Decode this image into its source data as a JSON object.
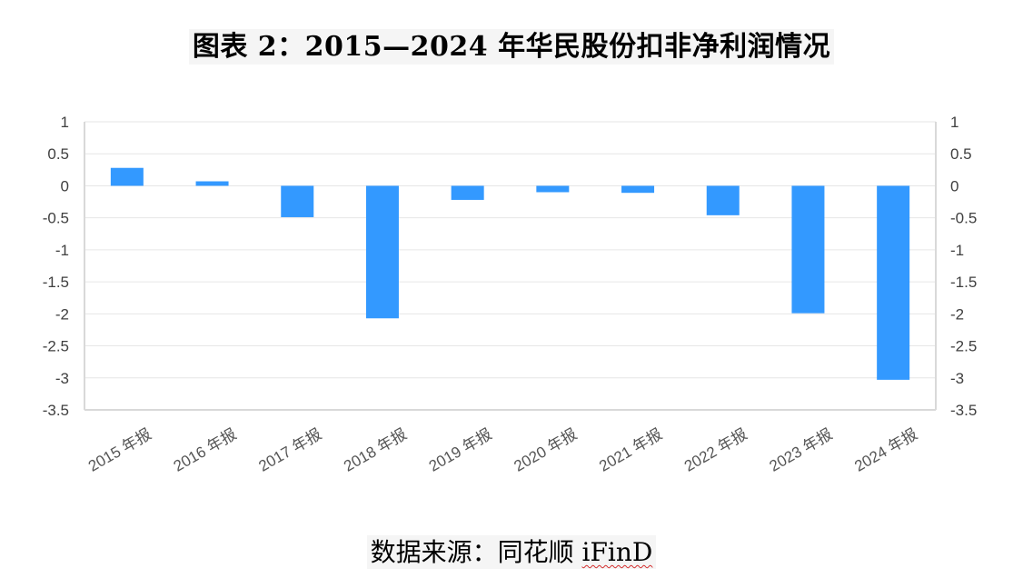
{
  "title": "图表 2：2015—2024 年华民股份扣非净利润情况",
  "source": {
    "label": "数据来源：同花顺",
    "brand": "iFinD"
  },
  "colors": {
    "bar": "#3399FF",
    "grid": "#E6E6E6",
    "axis": "#D9D9D9"
  },
  "chart_data": {
    "type": "bar",
    "categories": [
      "2015 年报",
      "2016 年报",
      "2017 年报",
      "2018 年报",
      "2019 年报",
      "2020 年报",
      "2021 年报",
      "2022 年报",
      "2023 年报",
      "2024 年报"
    ],
    "series": [
      {
        "values": [
          0.28,
          0.07,
          -0.49,
          -2.07,
          -0.22,
          -0.1,
          -0.11,
          -0.46,
          -1.99,
          -3.03
        ]
      }
    ],
    "ylim": [
      -3.5,
      1
    ],
    "yticks": [
      1,
      0.5,
      0,
      -0.5,
      -1,
      -1.5,
      -2,
      -2.5,
      -3,
      -3.5
    ],
    "ytick_labels": [
      "1",
      "0.5",
      "0",
      "-0.5",
      "-1",
      "-1.5",
      "-2",
      "-2.5",
      "-3",
      "-3.5"
    ],
    "secondary_yaxis": true,
    "grid": true,
    "title": "",
    "xlabel": "",
    "ylabel": ""
  }
}
